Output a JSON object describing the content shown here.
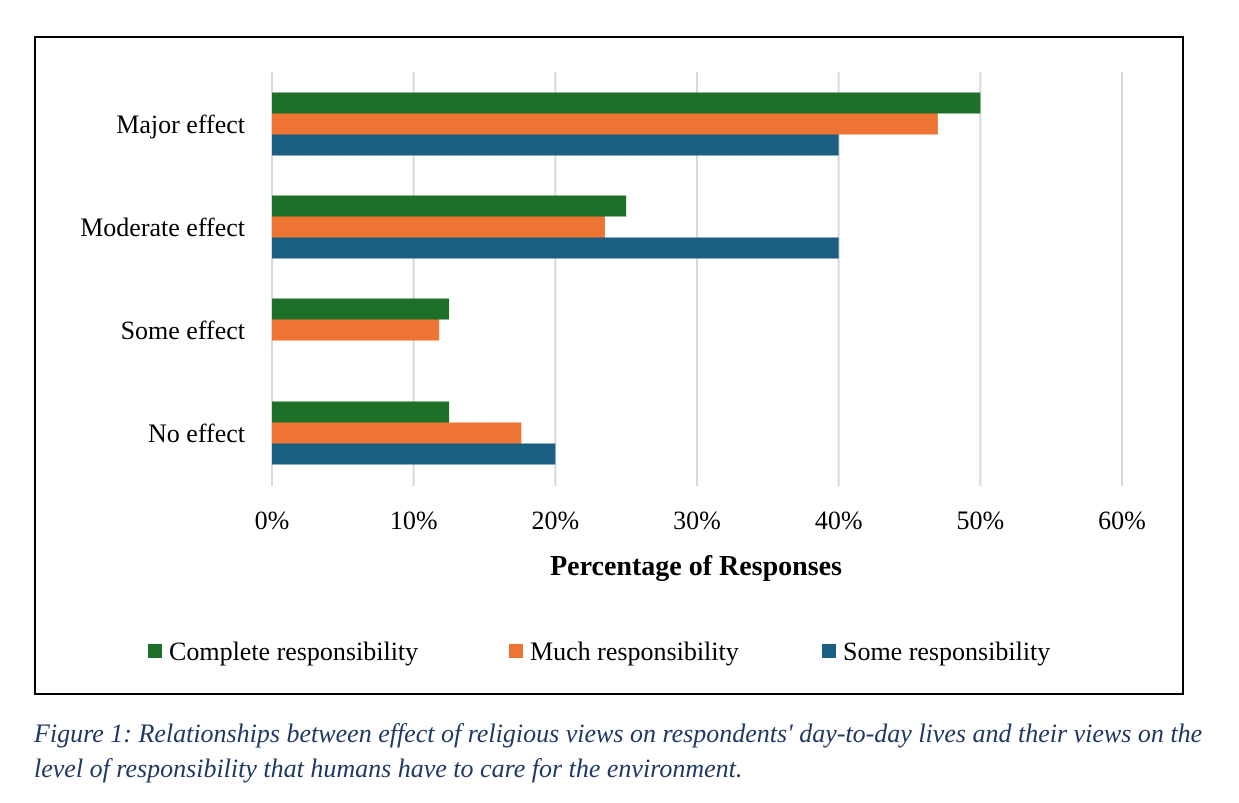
{
  "chart_data": {
    "type": "bar",
    "orientation": "horizontal",
    "categories": [
      "Major effect",
      "Moderate effect",
      "Some effect",
      "No effect"
    ],
    "series": [
      {
        "name": "Complete responsibility",
        "color": "#1e7028",
        "values": [
          50,
          25,
          12.5,
          12.5
        ]
      },
      {
        "name": "Much responsibility",
        "color": "#ed7433",
        "values": [
          47,
          23.5,
          11.8,
          17.6
        ]
      },
      {
        "name": "Some responsibility",
        "color": "#1a5e82",
        "values": [
          40,
          40,
          0,
          20
        ]
      }
    ],
    "xlabel": "Percentage of Responses",
    "ylabel": "",
    "xlim": [
      0,
      60
    ],
    "xticks": [
      "0%",
      "10%",
      "20%",
      "30%",
      "40%",
      "50%",
      "60%"
    ],
    "grid": "vertical",
    "legend_position": "bottom"
  },
  "caption": "Figure 1: Relationships between effect of religious views on respondents' day-to-day lives and their views on the level of responsibility that humans have to care for the environment."
}
